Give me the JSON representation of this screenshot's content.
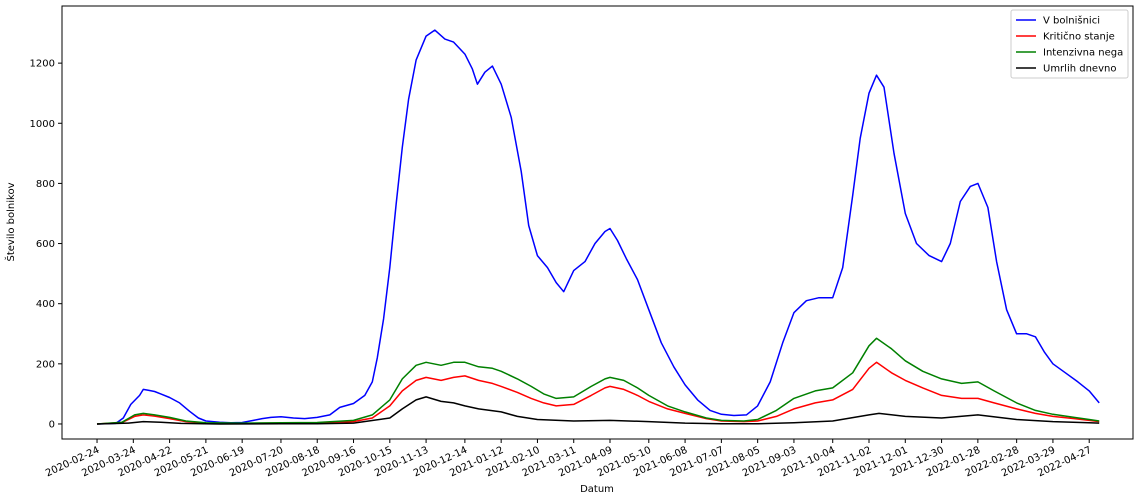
{
  "chart_data": {
    "type": "line",
    "xlabel": "Datum",
    "ylabel": "Število bolnikov",
    "xlim": [
      "2020-01-27",
      "2022-06-01"
    ],
    "ylim": [
      -50,
      1390
    ],
    "yticks": [
      0,
      200,
      400,
      600,
      800,
      1000,
      1200
    ],
    "xticks": [
      "2020-02-24",
      "2020-03-24",
      "2020-04-22",
      "2020-05-21",
      "2020-06-19",
      "2020-07-20",
      "2020-08-18",
      "2020-09-16",
      "2020-10-15",
      "2020-11-13",
      "2020-12-14",
      "2021-01-12",
      "2021-02-10",
      "2021-03-11",
      "2021-04-09",
      "2021-05-10",
      "2021-06-08",
      "2021-07-07",
      "2021-08-05",
      "2021-09-03",
      "2021-10-04",
      "2021-11-02",
      "2021-12-01",
      "2021-12-30",
      "2022-01-28",
      "2022-02-28",
      "2022-03-29",
      "2022-04-27"
    ],
    "legend_position": "top-right",
    "grid": false,
    "series": [
      {
        "name": "V bolnišnici",
        "color": "#0000ff",
        "points": [
          [
            "2020-02-24",
            0
          ],
          [
            "2020-03-10",
            2
          ],
          [
            "2020-03-16",
            20
          ],
          [
            "2020-03-22",
            65
          ],
          [
            "2020-03-29",
            95
          ],
          [
            "2020-04-01",
            115
          ],
          [
            "2020-04-05",
            112
          ],
          [
            "2020-04-10",
            108
          ],
          [
            "2020-04-15",
            100
          ],
          [
            "2020-04-22",
            88
          ],
          [
            "2020-04-30",
            70
          ],
          [
            "2020-05-08",
            42
          ],
          [
            "2020-05-15",
            20
          ],
          [
            "2020-05-21",
            10
          ],
          [
            "2020-06-01",
            6
          ],
          [
            "2020-06-10",
            4
          ],
          [
            "2020-06-19",
            5
          ],
          [
            "2020-06-28",
            12
          ],
          [
            "2020-07-05",
            18
          ],
          [
            "2020-07-12",
            22
          ],
          [
            "2020-07-20",
            24
          ],
          [
            "2020-07-30",
            20
          ],
          [
            "2020-08-08",
            18
          ],
          [
            "2020-08-18",
            22
          ],
          [
            "2020-08-28",
            30
          ],
          [
            "2020-09-05",
            55
          ],
          [
            "2020-09-16",
            68
          ],
          [
            "2020-09-25",
            95
          ],
          [
            "2020-10-01",
            140
          ],
          [
            "2020-10-05",
            220
          ],
          [
            "2020-10-10",
            350
          ],
          [
            "2020-10-15",
            520
          ],
          [
            "2020-10-20",
            730
          ],
          [
            "2020-10-25",
            920
          ],
          [
            "2020-10-30",
            1080
          ],
          [
            "2020-11-05",
            1210
          ],
          [
            "2020-11-13",
            1290
          ],
          [
            "2020-11-20",
            1310
          ],
          [
            "2020-11-28",
            1280
          ],
          [
            "2020-12-05",
            1270
          ],
          [
            "2020-12-14",
            1230
          ],
          [
            "2020-12-20",
            1180
          ],
          [
            "2020-12-24",
            1130
          ],
          [
            "2020-12-30",
            1170
          ],
          [
            "2021-01-05",
            1190
          ],
          [
            "2021-01-12",
            1130
          ],
          [
            "2021-01-20",
            1020
          ],
          [
            "2021-01-28",
            840
          ],
          [
            "2021-02-03",
            660
          ],
          [
            "2021-02-10",
            560
          ],
          [
            "2021-02-18",
            520
          ],
          [
            "2021-02-25",
            470
          ],
          [
            "2021-03-03",
            440
          ],
          [
            "2021-03-11",
            510
          ],
          [
            "2021-03-20",
            540
          ],
          [
            "2021-03-28",
            600
          ],
          [
            "2021-04-05",
            640
          ],
          [
            "2021-04-09",
            650
          ],
          [
            "2021-04-15",
            610
          ],
          [
            "2021-04-22",
            550
          ],
          [
            "2021-05-01",
            480
          ],
          [
            "2021-05-10",
            380
          ],
          [
            "2021-05-20",
            270
          ],
          [
            "2021-05-30",
            190
          ],
          [
            "2021-06-08",
            130
          ],
          [
            "2021-06-18",
            80
          ],
          [
            "2021-06-28",
            45
          ],
          [
            "2021-07-07",
            32
          ],
          [
            "2021-07-17",
            28
          ],
          [
            "2021-07-27",
            30
          ],
          [
            "2021-08-05",
            60
          ],
          [
            "2021-08-15",
            140
          ],
          [
            "2021-08-25",
            270
          ],
          [
            "2021-09-03",
            370
          ],
          [
            "2021-09-13",
            410
          ],
          [
            "2021-09-23",
            420
          ],
          [
            "2021-10-04",
            420
          ],
          [
            "2021-10-12",
            520
          ],
          [
            "2021-10-20",
            760
          ],
          [
            "2021-10-26",
            950
          ],
          [
            "2021-11-02",
            1100
          ],
          [
            "2021-11-08",
            1160
          ],
          [
            "2021-11-14",
            1120
          ],
          [
            "2021-11-22",
            900
          ],
          [
            "2021-12-01",
            700
          ],
          [
            "2021-12-10",
            600
          ],
          [
            "2021-12-20",
            560
          ],
          [
            "2021-12-30",
            540
          ],
          [
            "2022-01-06",
            600
          ],
          [
            "2022-01-14",
            740
          ],
          [
            "2022-01-22",
            790
          ],
          [
            "2022-01-28",
            800
          ],
          [
            "2022-02-05",
            720
          ],
          [
            "2022-02-12",
            540
          ],
          [
            "2022-02-20",
            380
          ],
          [
            "2022-02-28",
            300
          ],
          [
            "2022-03-08",
            300
          ],
          [
            "2022-03-15",
            290
          ],
          [
            "2022-03-22",
            240
          ],
          [
            "2022-03-29",
            200
          ],
          [
            "2022-04-08",
            170
          ],
          [
            "2022-04-18",
            140
          ],
          [
            "2022-04-27",
            110
          ],
          [
            "2022-05-05",
            70
          ]
        ]
      },
      {
        "name": "Kritično stanje",
        "color": "#ff0000",
        "points": [
          [
            "2020-02-24",
            0
          ],
          [
            "2020-03-15",
            5
          ],
          [
            "2020-03-25",
            25
          ],
          [
            "2020-04-01",
            30
          ],
          [
            "2020-04-10",
            26
          ],
          [
            "2020-04-22",
            18
          ],
          [
            "2020-05-05",
            8
          ],
          [
            "2020-05-21",
            3
          ],
          [
            "2020-06-19",
            2
          ],
          [
            "2020-07-20",
            3
          ],
          [
            "2020-08-18",
            4
          ],
          [
            "2020-09-16",
            8
          ],
          [
            "2020-10-01",
            20
          ],
          [
            "2020-10-15",
            60
          ],
          [
            "2020-10-25",
            110
          ],
          [
            "2020-11-05",
            145
          ],
          [
            "2020-11-13",
            155
          ],
          [
            "2020-11-25",
            145
          ],
          [
            "2020-12-05",
            155
          ],
          [
            "2020-12-14",
            160
          ],
          [
            "2020-12-25",
            145
          ],
          [
            "2021-01-05",
            135
          ],
          [
            "2021-01-12",
            125
          ],
          [
            "2021-01-25",
            105
          ],
          [
            "2021-02-05",
            85
          ],
          [
            "2021-02-15",
            70
          ],
          [
            "2021-02-25",
            60
          ],
          [
            "2021-03-11",
            65
          ],
          [
            "2021-03-25",
            95
          ],
          [
            "2021-04-05",
            120
          ],
          [
            "2021-04-09",
            125
          ],
          [
            "2021-04-20",
            115
          ],
          [
            "2021-05-01",
            95
          ],
          [
            "2021-05-10",
            75
          ],
          [
            "2021-05-25",
            50
          ],
          [
            "2021-06-08",
            35
          ],
          [
            "2021-06-25",
            18
          ],
          [
            "2021-07-07",
            10
          ],
          [
            "2021-07-25",
            8
          ],
          [
            "2021-08-05",
            10
          ],
          [
            "2021-08-20",
            25
          ],
          [
            "2021-09-03",
            50
          ],
          [
            "2021-09-20",
            70
          ],
          [
            "2021-10-04",
            80
          ],
          [
            "2021-10-20",
            115
          ],
          [
            "2021-11-02",
            185
          ],
          [
            "2021-11-08",
            205
          ],
          [
            "2021-11-20",
            170
          ],
          [
            "2021-12-01",
            145
          ],
          [
            "2021-12-15",
            120
          ],
          [
            "2021-12-30",
            95
          ],
          [
            "2022-01-15",
            85
          ],
          [
            "2022-01-28",
            85
          ],
          [
            "2022-02-10",
            70
          ],
          [
            "2022-02-28",
            50
          ],
          [
            "2022-03-15",
            35
          ],
          [
            "2022-03-29",
            25
          ],
          [
            "2022-04-15",
            18
          ],
          [
            "2022-04-27",
            12
          ],
          [
            "2022-05-05",
            8
          ]
        ]
      },
      {
        "name": "Intenzivna nega",
        "color": "#008000",
        "points": [
          [
            "2020-02-24",
            0
          ],
          [
            "2020-03-15",
            6
          ],
          [
            "2020-03-25",
            30
          ],
          [
            "2020-04-01",
            35
          ],
          [
            "2020-04-10",
            30
          ],
          [
            "2020-04-22",
            22
          ],
          [
            "2020-05-05",
            10
          ],
          [
            "2020-05-21",
            4
          ],
          [
            "2020-06-19",
            3
          ],
          [
            "2020-07-20",
            4
          ],
          [
            "2020-08-18",
            5
          ],
          [
            "2020-09-16",
            12
          ],
          [
            "2020-10-01",
            30
          ],
          [
            "2020-10-15",
            80
          ],
          [
            "2020-10-25",
            150
          ],
          [
            "2020-11-05",
            195
          ],
          [
            "2020-11-13",
            205
          ],
          [
            "2020-11-25",
            195
          ],
          [
            "2020-12-05",
            205
          ],
          [
            "2020-12-14",
            205
          ],
          [
            "2020-12-25",
            190
          ],
          [
            "2021-01-05",
            185
          ],
          [
            "2021-01-12",
            175
          ],
          [
            "2021-01-25",
            150
          ],
          [
            "2021-02-05",
            125
          ],
          [
            "2021-02-15",
            100
          ],
          [
            "2021-02-25",
            85
          ],
          [
            "2021-03-11",
            90
          ],
          [
            "2021-03-25",
            125
          ],
          [
            "2021-04-05",
            150
          ],
          [
            "2021-04-09",
            155
          ],
          [
            "2021-04-20",
            145
          ],
          [
            "2021-05-01",
            120
          ],
          [
            "2021-05-10",
            95
          ],
          [
            "2021-05-25",
            60
          ],
          [
            "2021-06-08",
            40
          ],
          [
            "2021-06-25",
            20
          ],
          [
            "2021-07-07",
            12
          ],
          [
            "2021-07-25",
            10
          ],
          [
            "2021-08-05",
            15
          ],
          [
            "2021-08-20",
            45
          ],
          [
            "2021-09-03",
            85
          ],
          [
            "2021-09-20",
            110
          ],
          [
            "2021-10-04",
            120
          ],
          [
            "2021-10-20",
            170
          ],
          [
            "2021-11-02",
            260
          ],
          [
            "2021-11-08",
            285
          ],
          [
            "2021-11-20",
            250
          ],
          [
            "2021-12-01",
            210
          ],
          [
            "2021-12-15",
            175
          ],
          [
            "2021-12-30",
            150
          ],
          [
            "2022-01-15",
            135
          ],
          [
            "2022-01-28",
            140
          ],
          [
            "2022-02-10",
            110
          ],
          [
            "2022-02-28",
            70
          ],
          [
            "2022-03-15",
            45
          ],
          [
            "2022-03-29",
            32
          ],
          [
            "2022-04-15",
            22
          ],
          [
            "2022-04-27",
            15
          ],
          [
            "2022-05-05",
            10
          ]
        ]
      },
      {
        "name": "Umrlih dnevno",
        "color": "#000000",
        "points": [
          [
            "2020-02-24",
            0
          ],
          [
            "2020-03-20",
            3
          ],
          [
            "2020-04-01",
            8
          ],
          [
            "2020-04-15",
            6
          ],
          [
            "2020-05-01",
            2
          ],
          [
            "2020-06-01",
            0
          ],
          [
            "2020-07-20",
            1
          ],
          [
            "2020-08-18",
            1
          ],
          [
            "2020-09-16",
            3
          ],
          [
            "2020-10-15",
            20
          ],
          [
            "2020-10-25",
            50
          ],
          [
            "2020-11-05",
            80
          ],
          [
            "2020-11-13",
            90
          ],
          [
            "2020-11-25",
            75
          ],
          [
            "2020-12-05",
            70
          ],
          [
            "2020-12-14",
            60
          ],
          [
            "2020-12-25",
            50
          ],
          [
            "2021-01-12",
            40
          ],
          [
            "2021-01-25",
            25
          ],
          [
            "2021-02-10",
            15
          ],
          [
            "2021-03-11",
            10
          ],
          [
            "2021-04-09",
            12
          ],
          [
            "2021-05-10",
            8
          ],
          [
            "2021-06-08",
            3
          ],
          [
            "2021-07-07",
            1
          ],
          [
            "2021-08-05",
            1
          ],
          [
            "2021-09-03",
            4
          ],
          [
            "2021-10-04",
            10
          ],
          [
            "2021-11-02",
            30
          ],
          [
            "2021-11-10",
            35
          ],
          [
            "2021-12-01",
            25
          ],
          [
            "2021-12-30",
            20
          ],
          [
            "2022-01-28",
            30
          ],
          [
            "2022-02-28",
            15
          ],
          [
            "2022-03-29",
            8
          ],
          [
            "2022-04-27",
            4
          ],
          [
            "2022-05-05",
            3
          ]
        ]
      }
    ]
  }
}
